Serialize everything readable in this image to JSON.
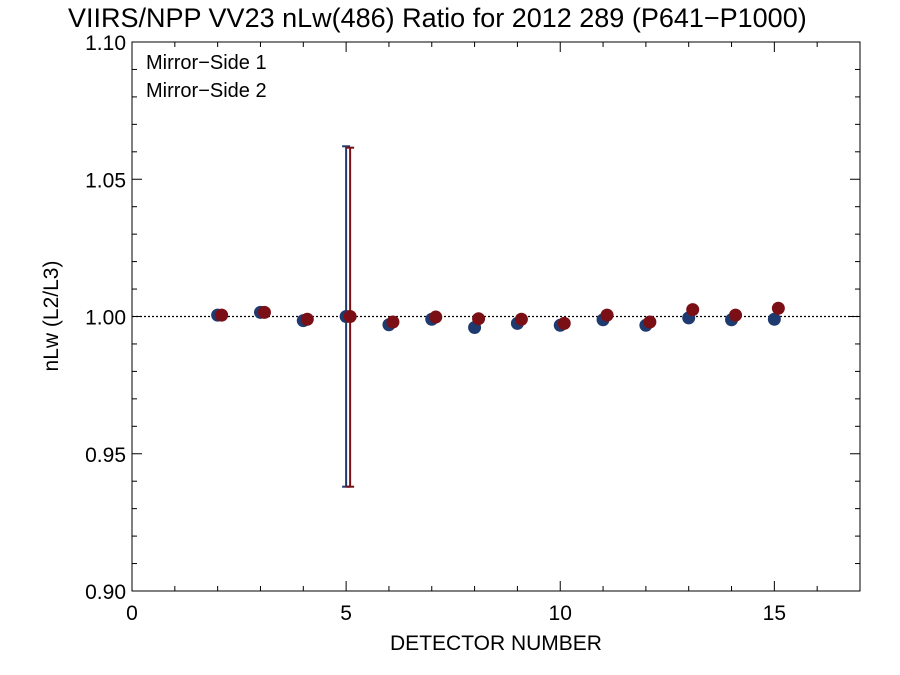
{
  "chart_data": {
    "type": "scatter",
    "title": "VIIRS/NPP VV23 nLw(486) Ratio for 2012 289 (P641−P1000)",
    "xlabel": "DETECTOR NUMBER",
    "ylabel": "nLw (L2/L3)",
    "xlim": [
      0,
      17
    ],
    "ylim": [
      0.9,
      1.1
    ],
    "x_ticks": [
      0,
      5,
      10,
      15
    ],
    "x_tick_labels": [
      "0",
      "5",
      "10",
      "15"
    ],
    "y_ticks": [
      0.9,
      0.95,
      1.0,
      1.05,
      1.1
    ],
    "y_tick_labels": [
      "0.90",
      "0.95",
      "1.00",
      "1.05",
      "1.10"
    ],
    "reference_line": 1.0,
    "grid": false,
    "legend_position": "top-left",
    "series": [
      {
        "name": "Mirror−Side 1",
        "color": "#1f3a6e",
        "x": [
          2,
          3,
          4,
          5,
          6,
          7,
          8,
          9,
          10,
          11,
          12,
          13,
          14,
          15
        ],
        "y": [
          1.0005,
          1.0015,
          0.9985,
          1.0,
          0.997,
          0.999,
          0.996,
          0.9975,
          0.9968,
          0.9988,
          0.9968,
          0.9995,
          0.9988,
          0.999
        ],
        "error_bars": [
          {
            "x": 5,
            "low": 0.938,
            "high": 1.062
          }
        ]
      },
      {
        "name": "Mirror−Side 2",
        "color": "#7a1016",
        "x": [
          2,
          3,
          4,
          5,
          6,
          7,
          8,
          9,
          10,
          11,
          12,
          13,
          14,
          15
        ],
        "y": [
          1.0005,
          1.0015,
          0.999,
          1.0,
          0.998,
          0.9998,
          0.9992,
          0.999,
          0.9975,
          1.0005,
          0.998,
          1.0025,
          1.0005,
          1.003
        ],
        "error_bars": [
          {
            "x": 5,
            "low": 0.938,
            "high": 1.0615
          }
        ]
      }
    ]
  }
}
